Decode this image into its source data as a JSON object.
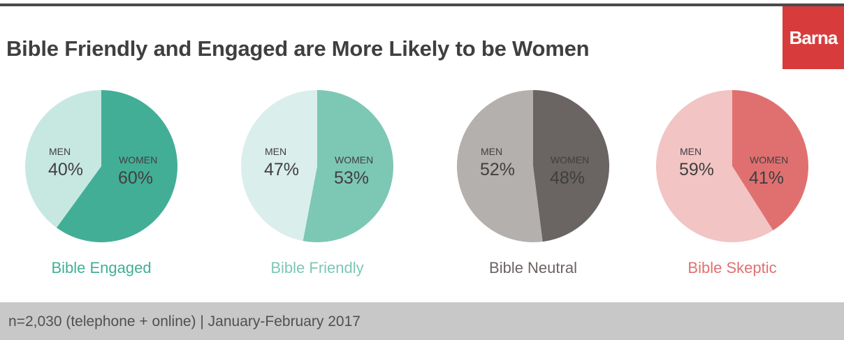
{
  "title": "Bible Friendly and Engaged are More Likely to be Women",
  "logo": "Barna",
  "footer": "n=2,030 (telephone + online) | January-February 2017",
  "chart_data": [
    {
      "type": "pie",
      "title": "Bible Engaged",
      "title_color": "#43ae96",
      "slices": [
        {
          "label": "WOMEN",
          "value": 60,
          "display": "60%",
          "color": "#43ae96"
        },
        {
          "label": "MEN",
          "value": 40,
          "display": "40%",
          "color": "#c7e8e1"
        }
      ]
    },
    {
      "type": "pie",
      "title": "Bible Friendly",
      "title_color": "#7dc7b5",
      "slices": [
        {
          "label": "WOMEN",
          "value": 53,
          "display": "53%",
          "color": "#7dc7b5"
        },
        {
          "label": "MEN",
          "value": 47,
          "display": "47%",
          "color": "#daeeeb"
        }
      ]
    },
    {
      "type": "pie",
      "title": "Bible Neutral",
      "title_color": "#6a6462",
      "slices": [
        {
          "label": "WOMEN",
          "value": 48,
          "display": "48%",
          "color": "#6a6462",
          "text_color": "#ffffff"
        },
        {
          "label": "MEN",
          "value": 52,
          "display": "52%",
          "color": "#b4b0ae"
        }
      ]
    },
    {
      "type": "pie",
      "title": "Bible Skeptic",
      "title_color": "#e07070",
      "slices": [
        {
          "label": "WOMEN",
          "value": 41,
          "display": "41%",
          "color": "#e07070"
        },
        {
          "label": "MEN",
          "value": 59,
          "display": "59%",
          "color": "#f2c4c4"
        }
      ]
    }
  ]
}
